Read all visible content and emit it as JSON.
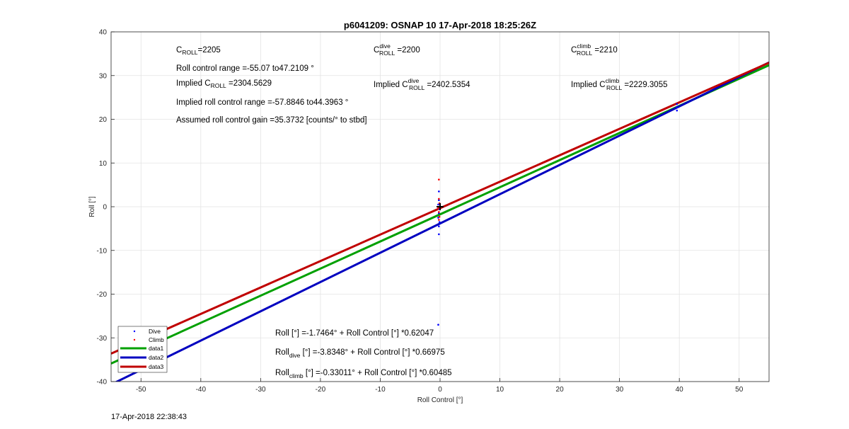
{
  "chart_data": {
    "type": "scatter",
    "title": "p6041209: OSNAP 10 17-Apr-2018 18:25:26Z",
    "xlabel": "Roll Control [°]",
    "ylabel": "Roll [°]",
    "xlim": [
      -55,
      55
    ],
    "ylim": [
      -40,
      40
    ],
    "xticks": [
      -50,
      -40,
      -30,
      -20,
      -10,
      0,
      10,
      20,
      30,
      40,
      50
    ],
    "yticks": [
      -40,
      -30,
      -20,
      -10,
      0,
      10,
      20,
      30,
      40
    ],
    "grid": true,
    "legend_position": "bottom-left",
    "series": [
      {
        "name": "Dive",
        "kind": "points",
        "color": "#0000ff",
        "points": [
          [
            -0.2,
            3.5
          ],
          [
            -0.2,
            1.5
          ],
          [
            -0.3,
            0.5
          ],
          [
            -0.1,
            -0.5
          ],
          [
            -0.2,
            -1.5
          ],
          [
            -0.3,
            -2.5
          ],
          [
            -0.1,
            -3.5
          ],
          [
            -0.2,
            -4.5
          ],
          [
            -0.2,
            -6.3
          ],
          [
            -0.3,
            -27
          ],
          [
            39.6,
            22.0
          ],
          [
            39.6,
            22.8
          ],
          [
            39.6,
            23.5
          ]
        ]
      },
      {
        "name": "Climb",
        "kind": "points",
        "color": "#ff0000",
        "points": [
          [
            -0.2,
            6.2
          ],
          [
            -0.2,
            1.8
          ],
          [
            -0.1,
            0.8
          ],
          [
            -0.3,
            -0.3
          ],
          [
            -0.2,
            -1.2
          ],
          [
            -0.1,
            -2.3
          ],
          [
            -0.2,
            -3.0
          ]
        ]
      },
      {
        "name": "data1",
        "kind": "line",
        "color": "#00a000",
        "x": [
          -55,
          55
        ],
        "y": [
          -35.87,
          32.38
        ]
      },
      {
        "name": "data2",
        "kind": "line",
        "color": "#0000c0",
        "x": [
          -55,
          55
        ],
        "y": [
          -40.67,
          33.0
        ]
      },
      {
        "name": "data3",
        "kind": "line",
        "color": "#c00000",
        "x": [
          -55,
          55
        ],
        "y": [
          -33.6,
          32.94
        ]
      }
    ],
    "center_marker": {
      "x": 0,
      "y": 0,
      "symbol": "+"
    },
    "annotations": [
      {
        "base": "C",
        "sub": "ROLL",
        "sup": "",
        "value": "=2205"
      },
      {
        "text": "Roll control range =-55.07 to47.2109 °"
      },
      {
        "prefix": "Implied C",
        "sub": "ROLL",
        "value": " =2304.5629"
      },
      {
        "text": "Implied roll control range =-57.8846 to44.3963 °"
      },
      {
        "text": "Assumed roll control gain =35.3732 [counts/° to stbd]"
      },
      {
        "base": "C",
        "sub": "ROLL",
        "sup": "dive",
        "value": " =2200"
      },
      {
        "prefix": "Implied C",
        "sub": "ROLL",
        "sup": "dive",
        "value": " =2402.5354"
      },
      {
        "base": "C",
        "sub": "ROLL",
        "sup": "climb",
        "value": " =2210"
      },
      {
        "prefix": "Implied C",
        "sub": "ROLL",
        "sup": "climb",
        "value": " =2229.3055"
      },
      {
        "text": "Roll [°] =-1.7464° + Roll Control [°] *0.62047"
      },
      {
        "base": "Roll",
        "sub": "dive",
        "value": " [°] =-3.8348° + Roll Control [°] *0.66975"
      },
      {
        "base": "Roll",
        "sub": "climb",
        "value": " [°] =-0.33011° + Roll Control [°] *0.60485"
      }
    ]
  },
  "footer": {
    "timestamp": "17-Apr-2018 22:38:43"
  }
}
